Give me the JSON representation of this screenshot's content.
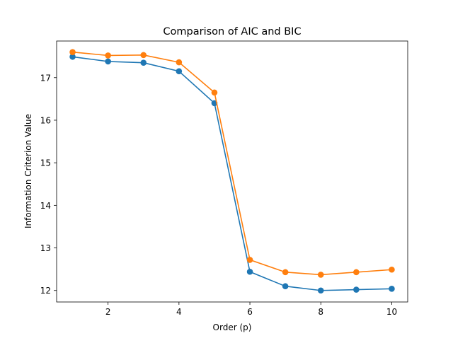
{
  "chart_data": {
    "type": "line",
    "title": "Comparison of AIC and BIC",
    "xlabel": "Order (p)",
    "ylabel": "Information Criterion Value",
    "x": [
      1,
      2,
      3,
      4,
      5,
      6,
      7,
      8,
      9,
      10
    ],
    "xlim": [
      0.55,
      10.45
    ],
    "ylim": [
      11.73,
      17.86
    ],
    "xticks": [
      2,
      4,
      6,
      8,
      10
    ],
    "yticks": [
      12,
      13,
      14,
      15,
      16,
      17
    ],
    "grid": false,
    "markers": true,
    "series": [
      {
        "color": "#1f77b4",
        "values": [
          17.49,
          17.38,
          17.35,
          17.15,
          16.4,
          12.44,
          12.1,
          12.0,
          12.02,
          12.04
        ]
      },
      {
        "color": "#ff7f0e",
        "values": [
          17.6,
          17.52,
          17.53,
          17.36,
          16.65,
          12.72,
          12.43,
          12.37,
          12.43,
          12.49
        ]
      }
    ]
  }
}
